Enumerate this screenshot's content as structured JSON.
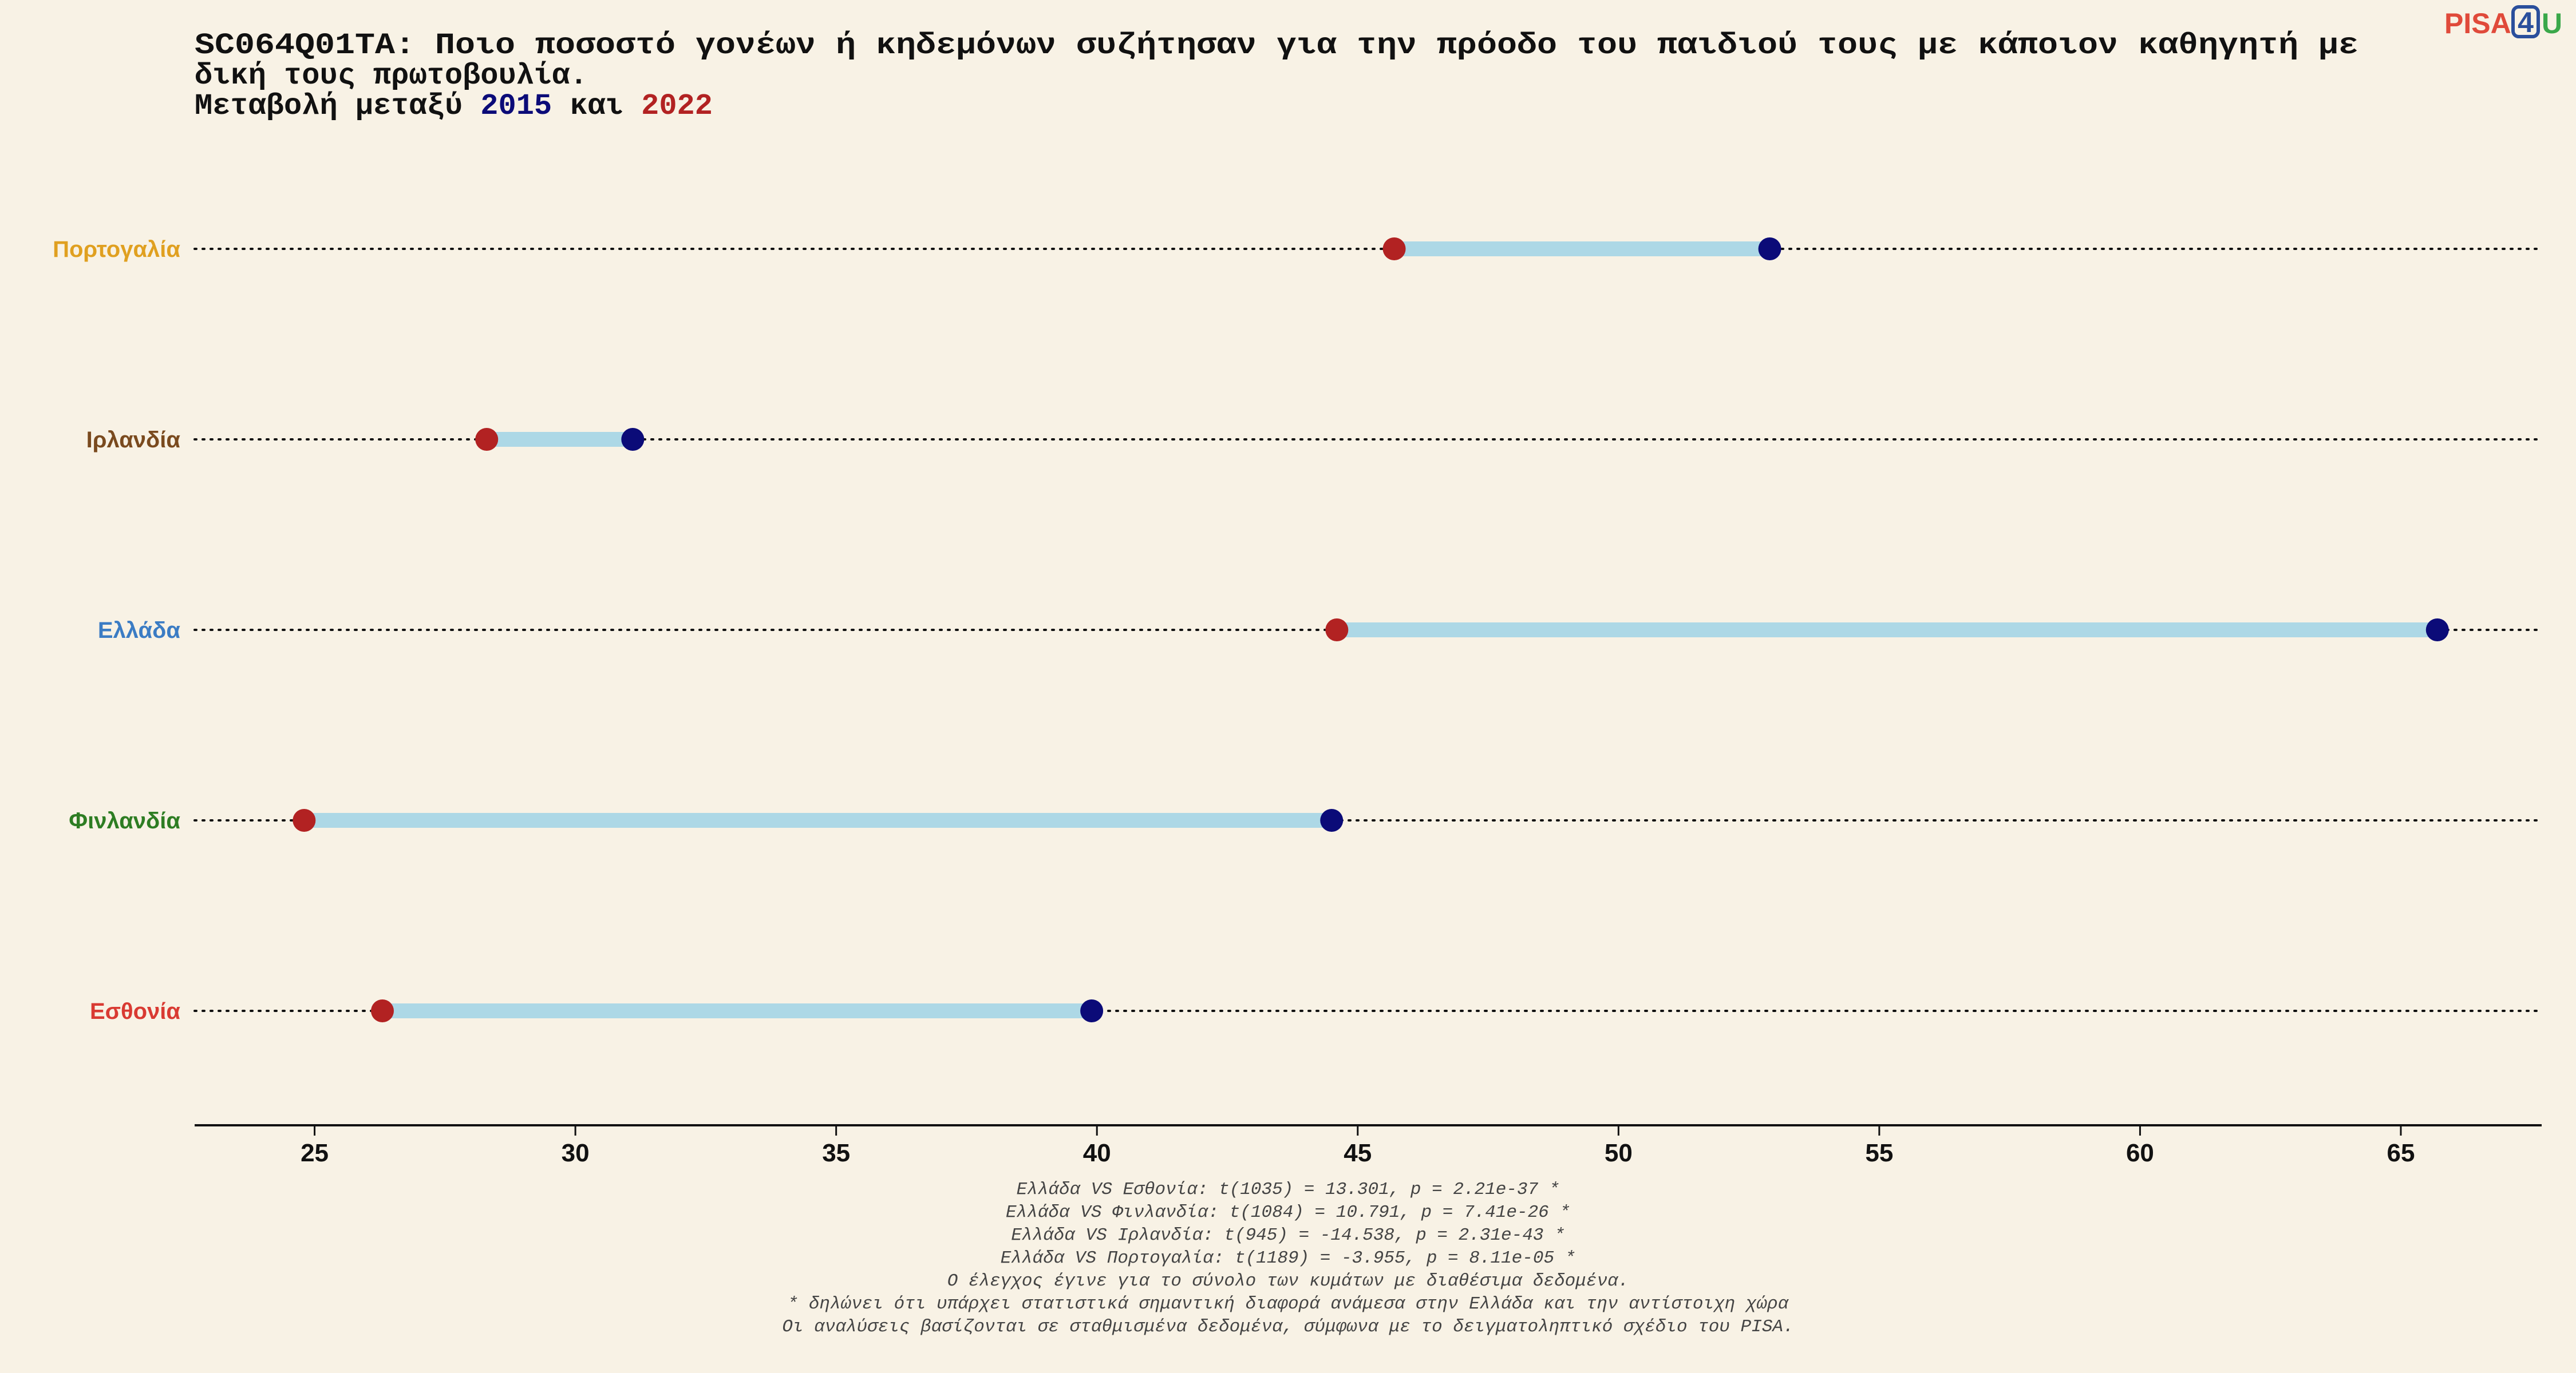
{
  "logo": {
    "part1": "PISA",
    "part2": "4",
    "part3": "U",
    "colors": {
      "part1": "#e04a3a",
      "part2": "#2a4f9c",
      "part3": "#3aa84a"
    }
  },
  "title": {
    "line1": "SC064Q01TA: Ποιο ποσοστό γονέων ή κηδεμόνων συζήτησαν για την πρόοδο του παιδιού τους με κάποιον καθηγητή με",
    "line2": "δική τους πρωτοβουλία.",
    "line3_prefix": "Μεταβολή μεταξύ ",
    "year_a": "2015",
    "line3_mid": " και ",
    "year_b": "2022"
  },
  "chart_data": {
    "type": "dumbbell",
    "x_ticks": [
      25,
      30,
      35,
      40,
      45,
      50,
      55,
      60,
      65
    ],
    "xlim": [
      22.7,
      67.7
    ],
    "grid": false,
    "colors": {
      "2015": "#0b0b78",
      "2022": "#b22222",
      "connector": "#add8e6"
    },
    "categories": [
      {
        "label": "Πορτογαλία",
        "color": "#e0a020",
        "v2015": 52.9,
        "v2022": 45.7
      },
      {
        "label": "Ιρλανδία",
        "color": "#7a4a1e",
        "v2015": 31.1,
        "v2022": 28.3
      },
      {
        "label": "Ελλάδα",
        "color": "#3b7cc4",
        "v2015": 65.7,
        "v2022": 44.6
      },
      {
        "label": "Φινλανδία",
        "color": "#2e7d23",
        "v2015": 44.5,
        "v2022": 24.8
      },
      {
        "label": "Εσθονία",
        "color": "#d93a32",
        "v2015": 39.9,
        "v2022": 26.3
      }
    ]
  },
  "notes": [
    "Ελλάδα VS Εσθονία: t(1035) = 13.301, p = 2.21e-37 *",
    "Ελλάδα VS Φινλανδία: t(1084) = 10.791, p = 7.41e-26 *",
    "Ελλάδα VS Ιρλανδία: t(945) = -14.538, p = 2.31e-43 *",
    "Ελλάδα VS Πορτογαλία: t(1189) = -3.955, p = 8.11e-05 *",
    "Ο έλεγχος έγινε για το σύνολο των κυμάτων με διαθέσιμα δεδομένα.",
    "* δηλώνει ότι υπάρχει στατιστικά σημαντική διαφορά ανάμεσα στην Ελλάδα και την αντίστοιχη χώρα",
    "Οι αναλύσεις βασίζονται σε σταθμισμένα δεδομένα, σύμφωνα με το δειγματοληπτικό σχέδιο του PISA."
  ]
}
